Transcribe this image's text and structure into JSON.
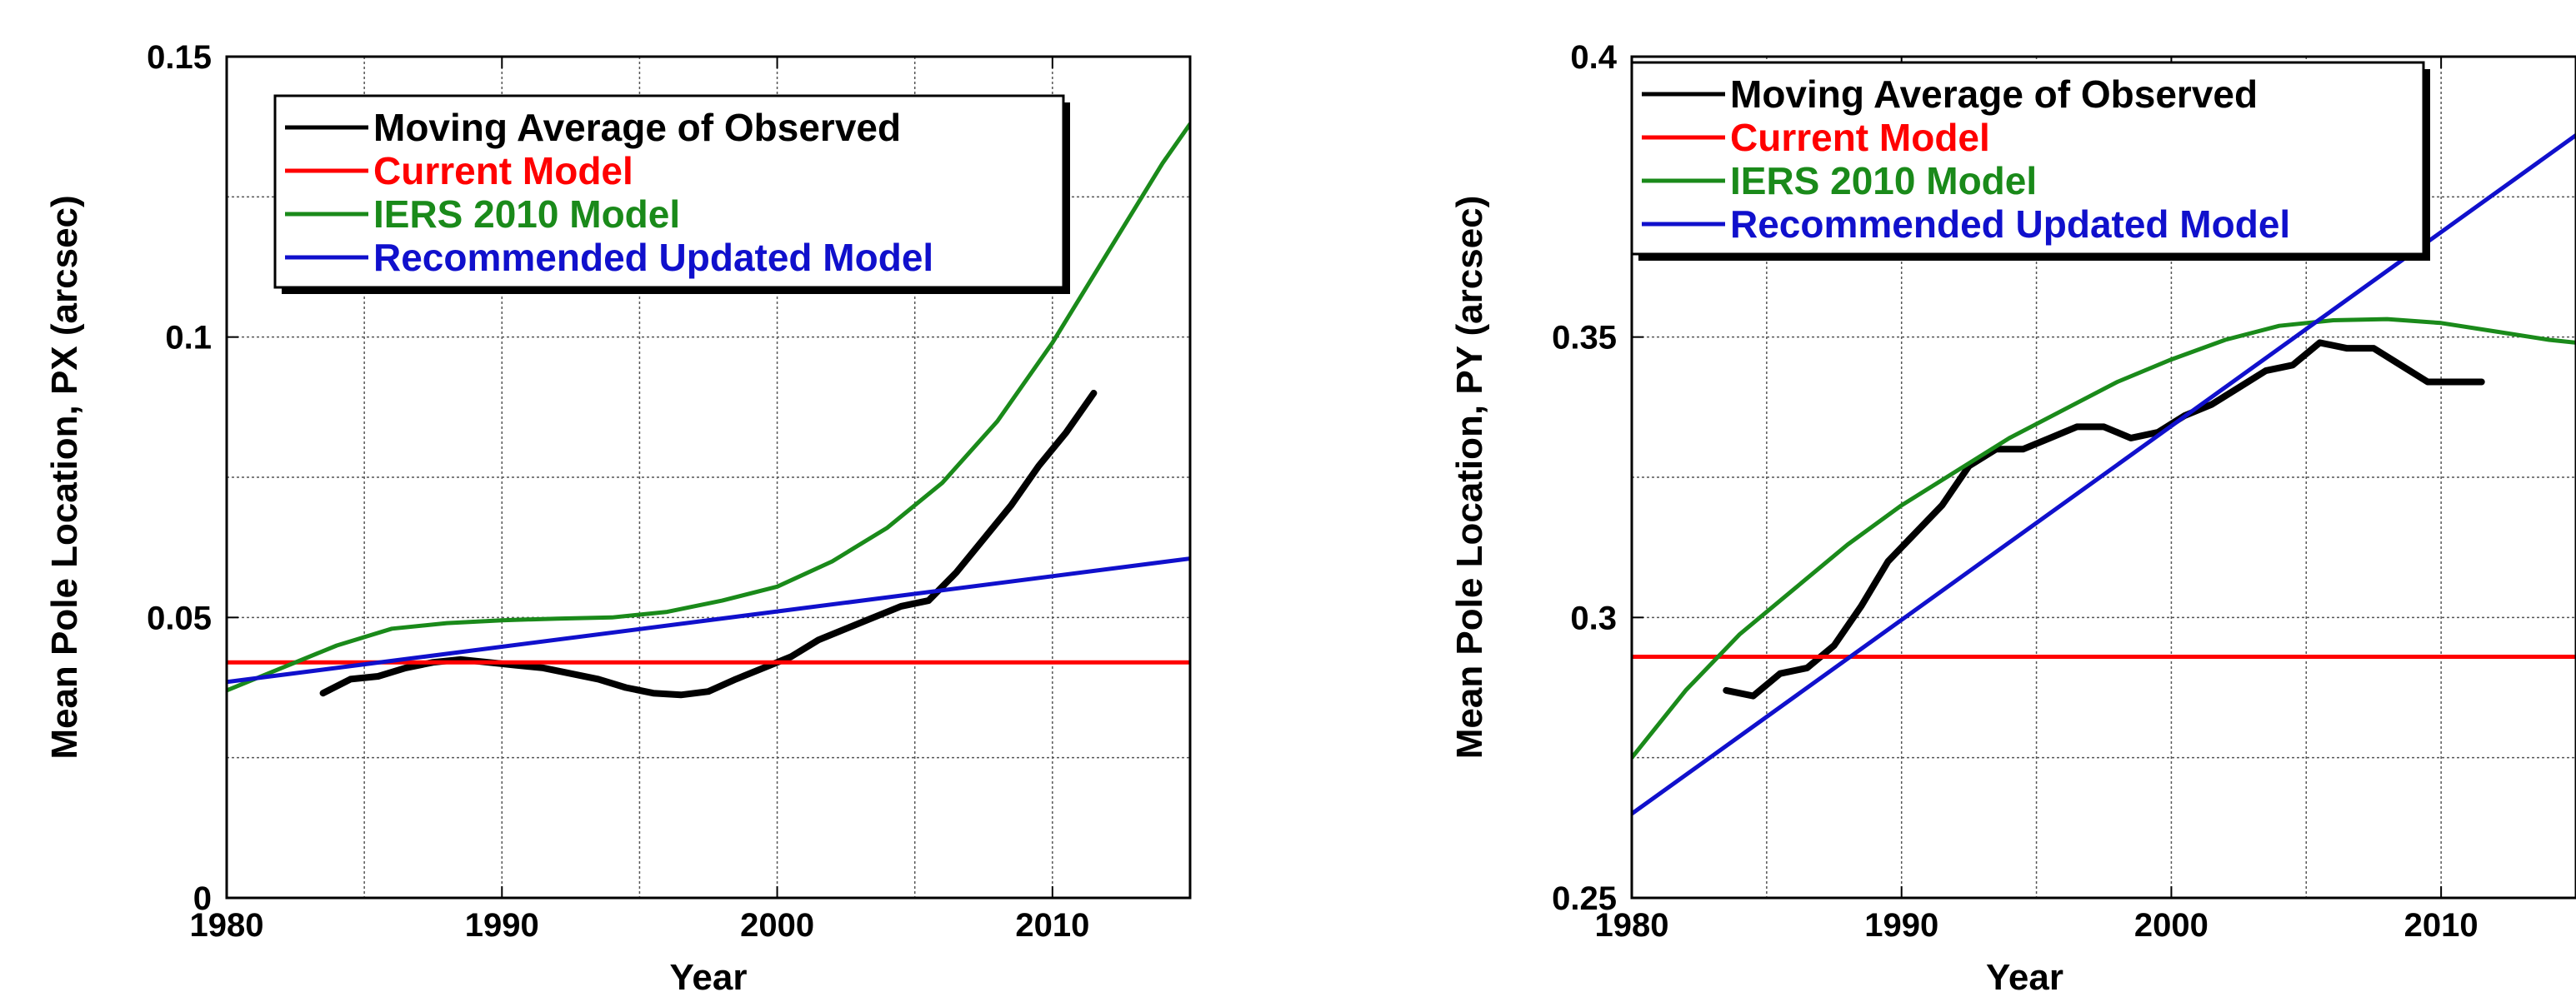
{
  "chart_data": [
    {
      "type": "line",
      "xlabel": "Year",
      "ylabel": "Mean Pole Location, PX (arcsec)",
      "xlim": [
        1980,
        2015
      ],
      "ylim": [
        0,
        0.15
      ],
      "xticks": [
        1980,
        1990,
        2000,
        2010
      ],
      "yticks": [
        0,
        0.05,
        0.1,
        0.15
      ],
      "ytick_labels": [
        "0",
        "0.05",
        "0.1",
        "0.15"
      ],
      "grid": true,
      "legend_position": "top-left",
      "series": [
        {
          "name": "Moving Average of Observed",
          "color": "#000000",
          "x": [
            1983.5,
            1984.5,
            1985.5,
            1986.5,
            1987.5,
            1988.5,
            1989.5,
            1990.5,
            1991.5,
            1992.5,
            1993.5,
            1994.5,
            1995.5,
            1996.5,
            1997.5,
            1998.5,
            1999.5,
            2000.5,
            2001.5,
            2002.5,
            2003.5,
            2004.5,
            2005.5,
            2006.5,
            2007.5,
            2008.5,
            2009.5,
            2010.5,
            2011.5
          ],
          "y": [
            0.0365,
            0.039,
            0.0395,
            0.041,
            0.042,
            0.0425,
            0.042,
            0.0415,
            0.041,
            0.04,
            0.039,
            0.0375,
            0.0365,
            0.0362,
            0.0368,
            0.039,
            0.041,
            0.043,
            0.046,
            0.048,
            0.05,
            0.052,
            0.053,
            0.058,
            0.064,
            0.07,
            0.077,
            0.083,
            0.09
          ]
        },
        {
          "name": "Current Model",
          "color": "#ff0000",
          "x": [
            1980,
            2015
          ],
          "y": [
            0.042,
            0.042
          ]
        },
        {
          "name": "IERS 2010 Model",
          "color": "#1a8a1a",
          "x": [
            1980,
            1982,
            1984,
            1986,
            1988,
            1990,
            1992,
            1994,
            1996,
            1998,
            2000,
            2002,
            2004,
            2006,
            2008,
            2010,
            2012,
            2014,
            2015
          ],
          "y": [
            0.037,
            0.041,
            0.045,
            0.048,
            0.049,
            0.0495,
            0.0498,
            0.05,
            0.051,
            0.053,
            0.0555,
            0.06,
            0.066,
            0.074,
            0.085,
            0.099,
            0.115,
            0.131,
            0.138
          ]
        },
        {
          "name": "Recommended Updated Model",
          "color": "#1010cc",
          "x": [
            1980,
            2015
          ],
          "y": [
            0.0385,
            0.0605
          ]
        }
      ]
    },
    {
      "type": "line",
      "xlabel": "Year",
      "ylabel": "Mean Pole Location, PY (arcsec)",
      "xlim": [
        1980,
        2015
      ],
      "ylim": [
        0.25,
        0.4
      ],
      "xticks": [
        1980,
        1990,
        2000,
        2010
      ],
      "yticks": [
        0.25,
        0.3,
        0.35,
        0.4
      ],
      "ytick_labels": [
        "0.25",
        "0.3",
        "0.35",
        "0.4"
      ],
      "grid": true,
      "legend_position": "top-left",
      "series": [
        {
          "name": "Moving Average of Observed",
          "color": "#000000",
          "x": [
            1983.5,
            1984.5,
            1985.5,
            1986.5,
            1987.5,
            1988.5,
            1989.5,
            1990.5,
            1991.5,
            1992.5,
            1993.5,
            1994.5,
            1995.5,
            1996.5,
            1997.5,
            1998.5,
            1999.5,
            2000.5,
            2001.5,
            2002.5,
            2003.5,
            2004.5,
            2005.5,
            2006.5,
            2007.5,
            2008.5,
            2009.5,
            2010.5,
            2011.5
          ],
          "y": [
            0.287,
            0.286,
            0.29,
            0.291,
            0.295,
            0.302,
            0.31,
            0.315,
            0.32,
            0.327,
            0.33,
            0.33,
            0.332,
            0.334,
            0.334,
            0.332,
            0.333,
            0.336,
            0.338,
            0.341,
            0.344,
            0.345,
            0.349,
            0.348,
            0.348,
            0.345,
            0.342,
            0.342,
            0.342
          ]
        },
        {
          "name": "Current Model",
          "color": "#ff0000",
          "x": [
            1980,
            2015
          ],
          "y": [
            0.293,
            0.293
          ]
        },
        {
          "name": "IERS 2010 Model",
          "color": "#1a8a1a",
          "x": [
            1980,
            1982,
            1984,
            1986,
            1988,
            1990,
            1992,
            1994,
            1996,
            1998,
            2000,
            2002,
            2004,
            2006,
            2008,
            2010,
            2012,
            2014,
            2015
          ],
          "y": [
            0.275,
            0.287,
            0.297,
            0.305,
            0.313,
            0.32,
            0.326,
            0.332,
            0.337,
            0.342,
            0.346,
            0.3495,
            0.352,
            0.353,
            0.3532,
            0.3525,
            0.351,
            0.3495,
            0.349
          ]
        },
        {
          "name": "Recommended Updated Model",
          "color": "#1010cc",
          "x": [
            1980,
            2015
          ],
          "y": [
            0.265,
            0.386
          ]
        }
      ]
    }
  ]
}
